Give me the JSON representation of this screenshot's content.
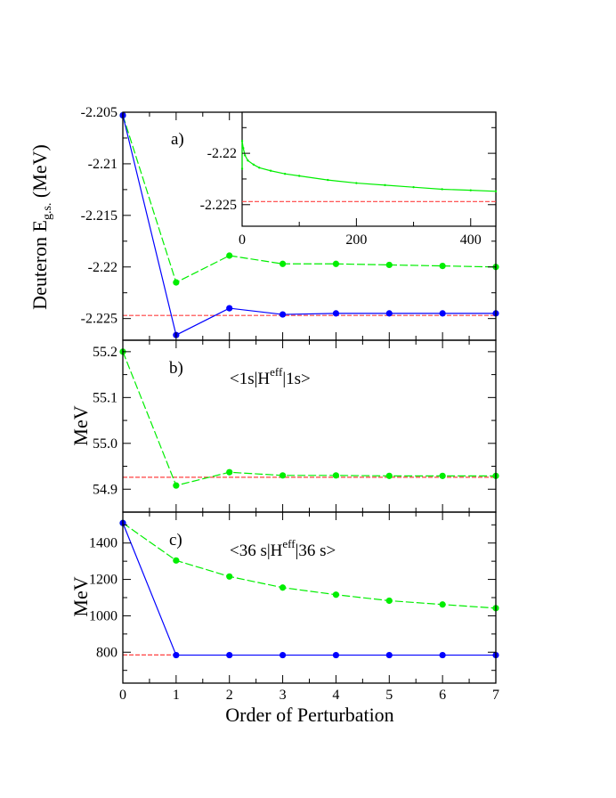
{
  "chart_data": [
    {
      "type": "line",
      "panel_label": "a)",
      "ylabel": {
        "main": "Deuteron E",
        "sub": "g.s.",
        "unit": " (MeV)"
      },
      "xlim": [
        0,
        7
      ],
      "ylim": [
        -2.2271,
        -2.205
      ],
      "yticks": [
        -2.205,
        -2.21,
        -2.215,
        -2.22,
        -2.225
      ],
      "ytick_labels": [
        "-2.205",
        "-2.21",
        "-2.215",
        "-2.22",
        "-2.225"
      ],
      "x": [
        0,
        1,
        2,
        3,
        4,
        5,
        6,
        7
      ],
      "series": [
        {
          "color": "#00ee00",
          "style": "dashed",
          "values": [
            -2.2053,
            -2.2215,
            -2.2189,
            -2.2197,
            -2.2197,
            -2.2198,
            -2.2199,
            -2.22
          ]
        },
        {
          "color": "#0000ff",
          "style": "solid",
          "values": [
            -2.2053,
            -2.2266,
            -2.224,
            -2.2246,
            -2.2245,
            -2.2245,
            -2.2245,
            -2.2245
          ]
        }
      ],
      "reference": {
        "color": "#ff4040",
        "value": -2.2247,
        "x_range": [
          0,
          7
        ]
      },
      "grid": false,
      "inset": {
        "type": "line",
        "xlim": [
          0,
          444
        ],
        "ylim": [
          -2.2271,
          -2.216
        ],
        "xticks": [
          0,
          200,
          400
        ],
        "xtick_labels": [
          "0",
          "200",
          "400"
        ],
        "yticks": [
          -2.22,
          -2.225
        ],
        "ytick_labels": [
          "-2.22",
          "-2.225"
        ],
        "series": [
          {
            "color": "#00ee00",
            "x": [
              0,
              0,
              2,
              5,
              10,
              20,
              30,
              50,
              75,
              100,
              150,
              200,
              250,
              300,
              350,
              400,
              444
            ],
            "values": [
              -2.2215,
              -2.2188,
              -2.2195,
              -2.2202,
              -2.2207,
              -2.2211,
              -2.2214,
              -2.2217,
              -2.222,
              -2.2222,
              -2.2226,
              -2.2229,
              -2.2231,
              -2.2233,
              -2.2235,
              -2.2236,
              -2.2237
            ]
          }
        ],
        "reference": {
          "color": "#ff4040",
          "value": -2.2247
        }
      }
    },
    {
      "type": "line",
      "panel_label": "b)",
      "annotation": {
        "pre": "<1s|H",
        "sup": "eff",
        "post": "|1s>"
      },
      "ylabel": "MeV",
      "xlim": [
        0,
        7
      ],
      "ylim": [
        54.85,
        55.225
      ],
      "yticks": [
        55.2,
        55.1,
        55.0,
        54.9
      ],
      "ytick_labels": [
        "55.2",
        "55.1",
        "55.0",
        "54.9"
      ],
      "x": [
        0,
        1,
        2,
        3,
        4,
        5,
        6,
        7
      ],
      "series": [
        {
          "color": "#00ee00",
          "style": "dashed",
          "values": [
            55.2,
            54.908,
            54.937,
            54.93,
            54.93,
            54.929,
            54.929,
            54.929
          ]
        }
      ],
      "reference": {
        "color": "#ff4040",
        "value": 54.926,
        "x_range": [
          0,
          7
        ]
      },
      "grid": false
    },
    {
      "type": "line",
      "panel_label": "c)",
      "annotation": {
        "pre": "<36 s|H",
        "sup": "eff",
        "post": "|36 s>"
      },
      "ylabel": "MeV",
      "xlabel": "Order of Perturbation",
      "xlim": [
        0,
        7
      ],
      "xticks": [
        0,
        1,
        2,
        3,
        4,
        5,
        6,
        7
      ],
      "xtick_labels": [
        "0",
        "1",
        "2",
        "3",
        "4",
        "5",
        "6",
        "7"
      ],
      "ylim": [
        630,
        1570
      ],
      "yticks": [
        1400,
        1200,
        1000,
        800
      ],
      "ytick_labels": [
        "1400",
        "1200",
        "1000",
        "800"
      ],
      "x": [
        0,
        1,
        2,
        3,
        4,
        5,
        6,
        7
      ],
      "series": [
        {
          "color": "#00ee00",
          "style": "dashed",
          "values": [
            1510,
            1304,
            1216,
            1155,
            1116,
            1083,
            1062,
            1042
          ]
        },
        {
          "color": "#0000ff",
          "style": "solid",
          "values": [
            1510,
            784,
            784,
            784,
            784,
            784,
            784,
            784
          ]
        }
      ],
      "reference": {
        "color": "#ff4040",
        "value": 785,
        "x_range": [
          0,
          1
        ]
      },
      "grid": false
    }
  ]
}
